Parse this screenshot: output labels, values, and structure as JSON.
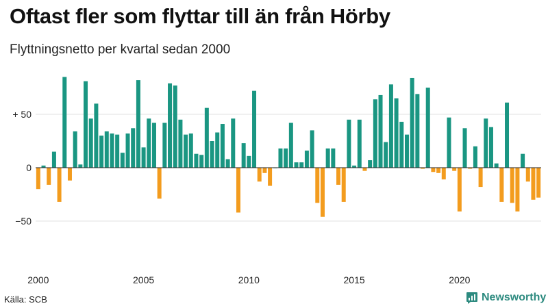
{
  "header": {
    "title": "Oftast fler som flyttar till än från Hörby",
    "subtitle": "Flyttningsnetto per kvartal sedan 2000"
  },
  "footer": {
    "source": "Källa: SCB",
    "brand": "Newsworthy"
  },
  "colors": {
    "positive": "#1a9682",
    "negative": "#f39c1e",
    "grid": "#e2e2e2",
    "zero": "#222222",
    "brand": "#2c8a7f"
  },
  "chart_data": {
    "type": "bar",
    "title": "Oftast fler som flyttar till än från Hörby",
    "subtitle": "Flyttningsnetto per kvartal sedan 2000",
    "xlabel": "",
    "ylabel": "",
    "ylim": [
      -80,
      90
    ],
    "grid": true,
    "y_ticks": [
      {
        "value": 50,
        "label": "+ 50"
      },
      {
        "value": 0,
        "label": "0"
      },
      {
        "value": -50,
        "label": "−50"
      }
    ],
    "x_ticks": [
      {
        "label": "2000",
        "year": 2000
      },
      {
        "label": "2005",
        "year": 2005
      },
      {
        "label": "2010",
        "year": 2010
      },
      {
        "label": "2015",
        "year": 2015
      },
      {
        "label": "2020",
        "year": 2020
      }
    ],
    "start": {
      "year": 2000,
      "quarter": 1
    },
    "values": [
      -20,
      2,
      -16,
      15,
      -32,
      85,
      -12,
      34,
      3,
      81,
      46,
      60,
      30,
      34,
      32,
      31,
      14,
      32,
      37,
      82,
      19,
      46,
      42,
      -29,
      42,
      79,
      77,
      45,
      31,
      32,
      13,
      12,
      56,
      25,
      33,
      41,
      8,
      46,
      -42,
      23,
      11,
      72,
      -13,
      -5,
      -17,
      0,
      18,
      18,
      42,
      5,
      5,
      16,
      35,
      -33,
      -46,
      18,
      18,
      -16,
      -32,
      45,
      2,
      45,
      -3,
      7,
      64,
      68,
      24,
      78,
      65,
      43,
      31,
      84,
      69,
      -1,
      75,
      -4,
      -5,
      -11,
      47,
      -3,
      -41,
      37,
      -1,
      20,
      -18,
      46,
      38,
      4,
      -32,
      61,
      -33,
      -41,
      13,
      -13,
      -30,
      -28
    ]
  }
}
